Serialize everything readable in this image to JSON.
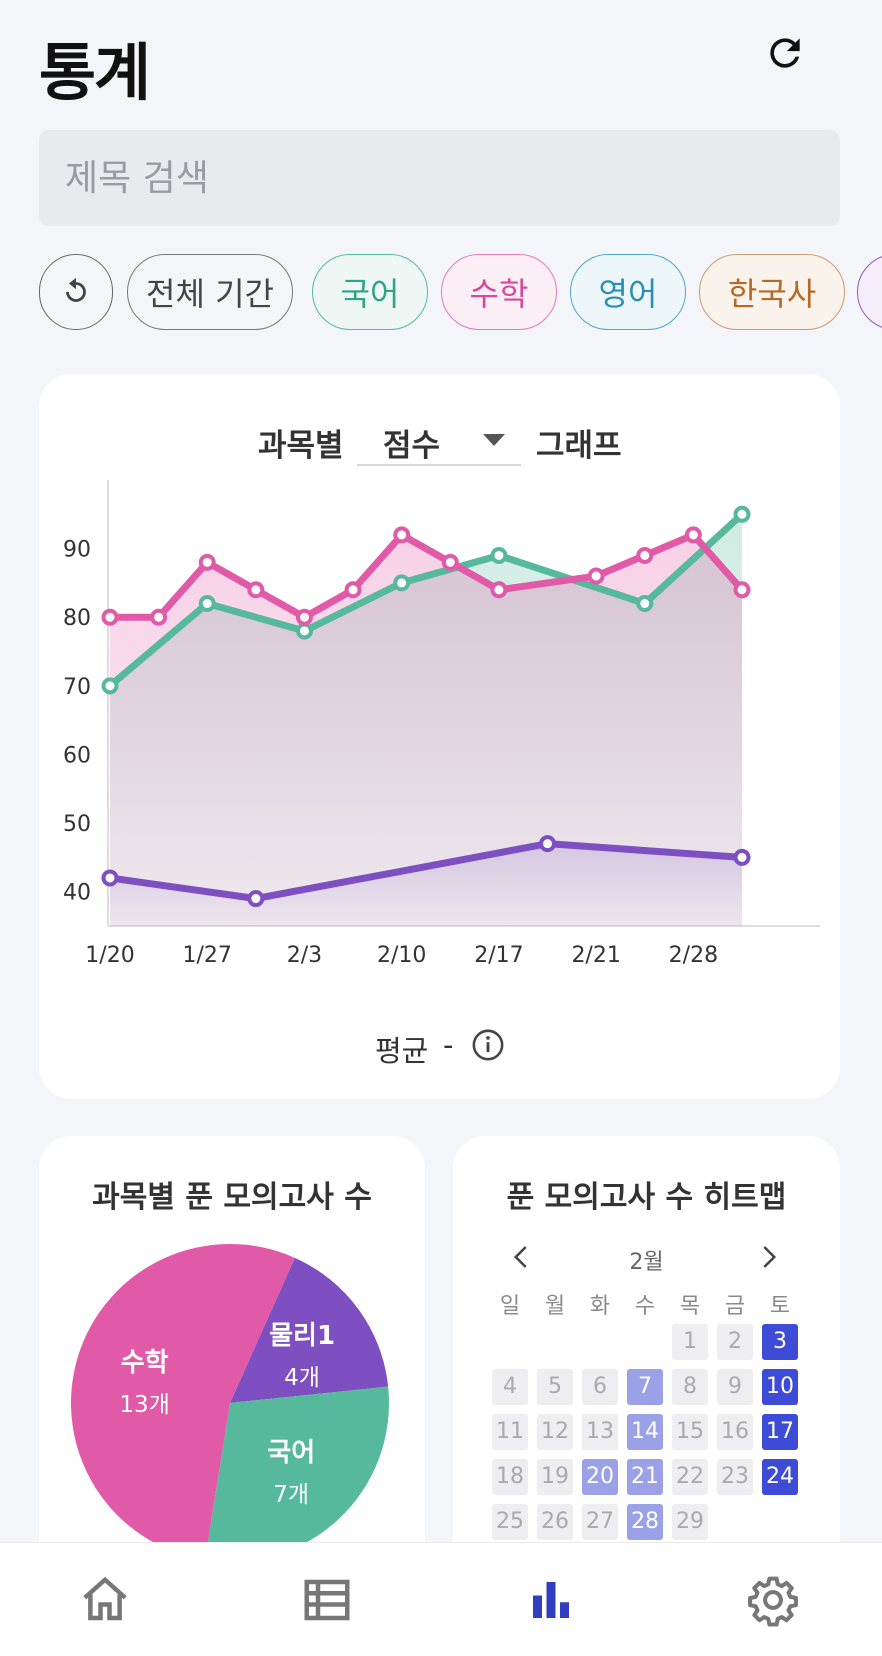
{
  "header": {
    "title": "통계",
    "refresh_icon": "refresh-icon"
  },
  "search": {
    "placeholder": "제목 검색",
    "value": ""
  },
  "filters": {
    "reset_icon": "undo-icon",
    "period": "전체 기간",
    "subjects": [
      {
        "label": "국어",
        "color": "#2fa383"
      },
      {
        "label": "수학",
        "color": "#d6489c"
      },
      {
        "label": "영어",
        "color": "#2a8fb5"
      },
      {
        "label": "한국사",
        "color": "#b56a2a"
      }
    ]
  },
  "line_card": {
    "title_prefix": "과목별",
    "metric": "점수",
    "title_suffix": "그래프",
    "average_label": "평균",
    "average_value": "-"
  },
  "pie_card": {
    "title": "과목별 푼 모의고사 수"
  },
  "heatmap_card": {
    "title": "푼 모의고사 수 히트맵",
    "month": "2월",
    "weekdays": [
      "일",
      "월",
      "화",
      "수",
      "목",
      "금",
      "토"
    ],
    "start_weekday": 4,
    "days_in_month": 29,
    "levels": {
      "3": 2,
      "7": 1,
      "10": 2,
      "14": 1,
      "17": 2,
      "20": 1,
      "21": 1,
      "24": 2,
      "28": 1
    },
    "colors": {
      "empty": "#eeeef0",
      "level1": "#9aa1e6",
      "level2": "#3d4bd6"
    }
  },
  "chart_data": [
    {
      "type": "area",
      "title": "",
      "xlabel": "",
      "ylabel": "",
      "xlim": [
        0,
        13
      ],
      "ylim": [
        35,
        100
      ],
      "yticks": [
        40,
        50,
        60,
        70,
        80,
        90
      ],
      "xtick_labels": [
        {
          "x": 0,
          "label": "1/20"
        },
        {
          "x": 2,
          "label": "1/27"
        },
        {
          "x": 4,
          "label": "2/3"
        },
        {
          "x": 6,
          "label": "2/10"
        },
        {
          "x": 8,
          "label": "2/17"
        },
        {
          "x": 10,
          "label": "2/21"
        },
        {
          "x": 12,
          "label": "2/28"
        }
      ],
      "grid": false,
      "series": [
        {
          "color": "#57b99b",
          "points": [
            [
              0,
              70
            ],
            [
              2,
              82
            ],
            [
              4,
              78
            ],
            [
              6,
              85
            ],
            [
              8,
              89
            ],
            [
              11,
              82
            ],
            [
              13,
              95
            ]
          ]
        },
        {
          "color": "#e05aa8",
          "points": [
            [
              0,
              80
            ],
            [
              1,
              80
            ],
            [
              2,
              88
            ],
            [
              3,
              84
            ],
            [
              4,
              80
            ],
            [
              5,
              84
            ],
            [
              6,
              92
            ],
            [
              7,
              88
            ],
            [
              8,
              84
            ],
            [
              10,
              86
            ],
            [
              11,
              89
            ],
            [
              12,
              92
            ],
            [
              13,
              84
            ]
          ]
        },
        {
          "color": "#7e4fc0",
          "points": [
            [
              0,
              42
            ],
            [
              3,
              39
            ],
            [
              9,
              47
            ],
            [
              13,
              45
            ]
          ]
        }
      ]
    },
    {
      "type": "pie",
      "title": "",
      "slices": [
        {
          "label": "수학",
          "count_label": "13개",
          "value": 13,
          "color": "#e05aa8"
        },
        {
          "label": "물리1",
          "count_label": "4개",
          "value": 4,
          "color": "#7e4fc0"
        },
        {
          "label": "국어",
          "count_label": "7개",
          "value": 7,
          "color": "#57b99b"
        }
      ]
    }
  ],
  "bottom_nav": [
    {
      "icon": "home-icon",
      "active": false
    },
    {
      "icon": "list-icon",
      "active": false
    },
    {
      "icon": "bar-chart-icon",
      "active": true
    },
    {
      "icon": "gear-icon",
      "active": false
    }
  ]
}
